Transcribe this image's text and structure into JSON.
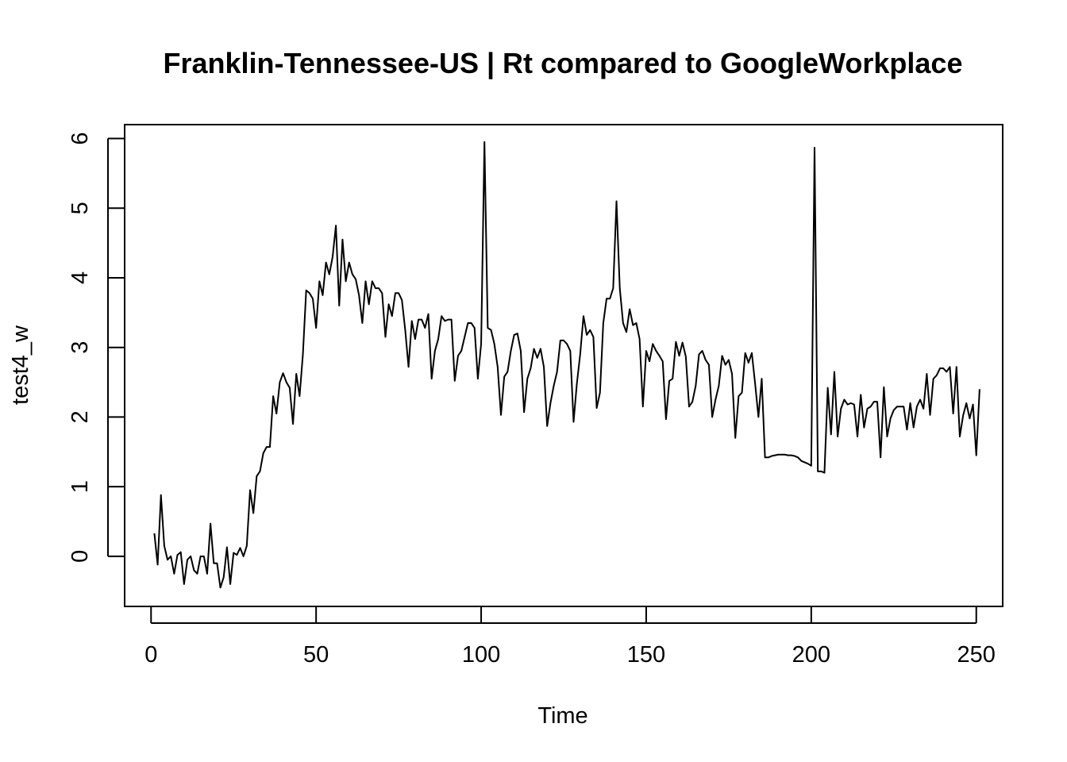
{
  "chart_data": {
    "type": "line",
    "title": "Franklin-Tennessee-US | Rt compared to GoogleWorkplace",
    "xlabel": "Time",
    "ylabel": "test4_w",
    "xlim": [
      -8,
      258
    ],
    "ylim": [
      -0.72,
      6.2
    ],
    "x_ticks": [
      0,
      50,
      100,
      150,
      200,
      250
    ],
    "y_ticks": [
      0,
      1,
      2,
      3,
      4,
      5,
      6
    ],
    "line_color": "#000000",
    "legend": "none",
    "grid": false,
    "series": [
      {
        "x_start": 1,
        "x_step": 1,
        "values": [
          0.33,
          -0.12,
          0.88,
          0.15,
          -0.05,
          0.0,
          -0.25,
          0.02,
          0.06,
          -0.4,
          -0.05,
          0.0,
          -0.2,
          -0.25,
          0.0,
          0.0,
          -0.25,
          0.47,
          -0.1,
          -0.1,
          -0.45,
          -0.3,
          0.13,
          -0.4,
          0.05,
          0.02,
          0.12,
          0.0,
          0.15,
          0.95,
          0.62,
          1.15,
          1.22,
          1.48,
          1.57,
          1.57,
          2.3,
          2.05,
          2.5,
          2.63,
          2.5,
          2.42,
          1.9,
          2.62,
          2.3,
          2.9,
          3.82,
          3.78,
          3.7,
          3.28,
          3.95,
          3.75,
          4.22,
          4.05,
          4.3,
          4.75,
          3.6,
          4.55,
          3.95,
          4.22,
          4.05,
          3.98,
          3.75,
          3.35,
          3.95,
          3.62,
          3.95,
          3.85,
          3.85,
          3.78,
          3.15,
          3.62,
          3.45,
          3.78,
          3.78,
          3.68,
          3.25,
          2.72,
          3.38,
          3.12,
          3.4,
          3.4,
          3.28,
          3.48,
          2.55,
          2.95,
          3.12,
          3.45,
          3.38,
          3.4,
          3.4,
          2.52,
          2.88,
          2.95,
          3.15,
          3.35,
          3.35,
          3.28,
          2.55,
          3.05,
          5.95,
          3.28,
          3.25,
          3.05,
          2.72,
          2.03,
          2.58,
          2.65,
          2.95,
          3.18,
          3.2,
          2.95,
          2.07,
          2.55,
          2.7,
          2.98,
          2.85,
          2.98,
          2.72,
          1.87,
          2.2,
          2.45,
          2.65,
          3.1,
          3.1,
          3.05,
          2.95,
          1.93,
          2.48,
          2.9,
          3.45,
          3.18,
          3.25,
          3.15,
          2.13,
          2.35,
          3.35,
          3.7,
          3.7,
          3.85,
          5.1,
          3.85,
          3.35,
          3.22,
          3.55,
          3.32,
          3.35,
          3.12,
          2.15,
          2.95,
          2.8,
          3.05,
          2.95,
          2.88,
          2.8,
          1.97,
          2.52,
          2.55,
          3.08,
          2.88,
          3.07,
          2.87,
          2.15,
          2.22,
          2.45,
          2.9,
          2.95,
          2.82,
          2.75,
          2.0,
          2.25,
          2.45,
          2.88,
          2.75,
          2.82,
          2.62,
          1.7,
          2.3,
          2.35,
          2.92,
          2.78,
          2.92,
          2.48,
          2.0,
          2.55,
          1.42,
          1.42,
          1.44,
          1.45,
          1.46,
          1.46,
          1.46,
          1.45,
          1.45,
          1.44,
          1.42,
          1.37,
          1.35,
          1.33,
          1.3,
          5.87,
          1.22,
          1.22,
          1.2,
          2.42,
          1.75,
          2.65,
          1.72,
          2.12,
          2.25,
          2.18,
          2.2,
          2.18,
          1.72,
          2.32,
          1.85,
          2.12,
          2.15,
          2.22,
          2.22,
          1.42,
          2.43,
          1.72,
          1.98,
          2.1,
          2.15,
          2.15,
          2.15,
          1.82,
          2.2,
          1.85,
          2.15,
          2.25,
          2.12,
          2.62,
          2.03,
          2.55,
          2.6,
          2.7,
          2.7,
          2.65,
          2.72,
          2.05,
          2.72,
          1.72,
          2.02,
          2.2,
          1.98,
          2.18,
          1.45,
          2.4
        ]
      }
    ]
  }
}
